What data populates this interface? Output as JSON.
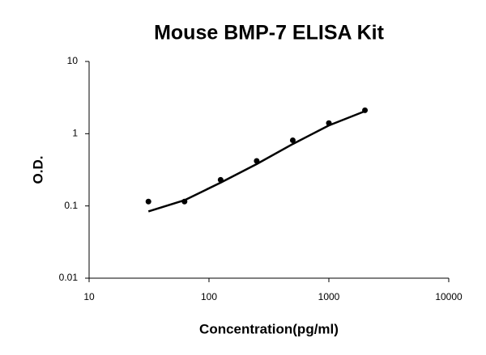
{
  "chart_data": {
    "type": "scatter",
    "title": "Mouse BMP-7 ELISA Kit",
    "x_label": "Concentration(pg/ml)",
    "y_label": "O.D.",
    "x": [
      31.25,
      62.5,
      125,
      250,
      500,
      1000,
      2000
    ],
    "series": [
      {
        "color": "#000000",
        "values": [
          0.115,
          0.115,
          0.23,
          0.42,
          0.81,
          1.4,
          2.11
        ]
      },
      {
        "color": "#000000",
        "values": [
          0.084,
          0.12,
          0.21,
          0.38,
          0.72,
          1.3,
          2.05
        ]
      }
    ],
    "xlim": [
      10,
      10000
    ],
    "xticks": [
      10,
      100,
      1000,
      10000
    ],
    "ylim": [
      0.01,
      10
    ],
    "yticks": [
      10,
      1,
      0.1,
      0.01
    ],
    "log_x": true,
    "log_y": true,
    "grid": false
  }
}
